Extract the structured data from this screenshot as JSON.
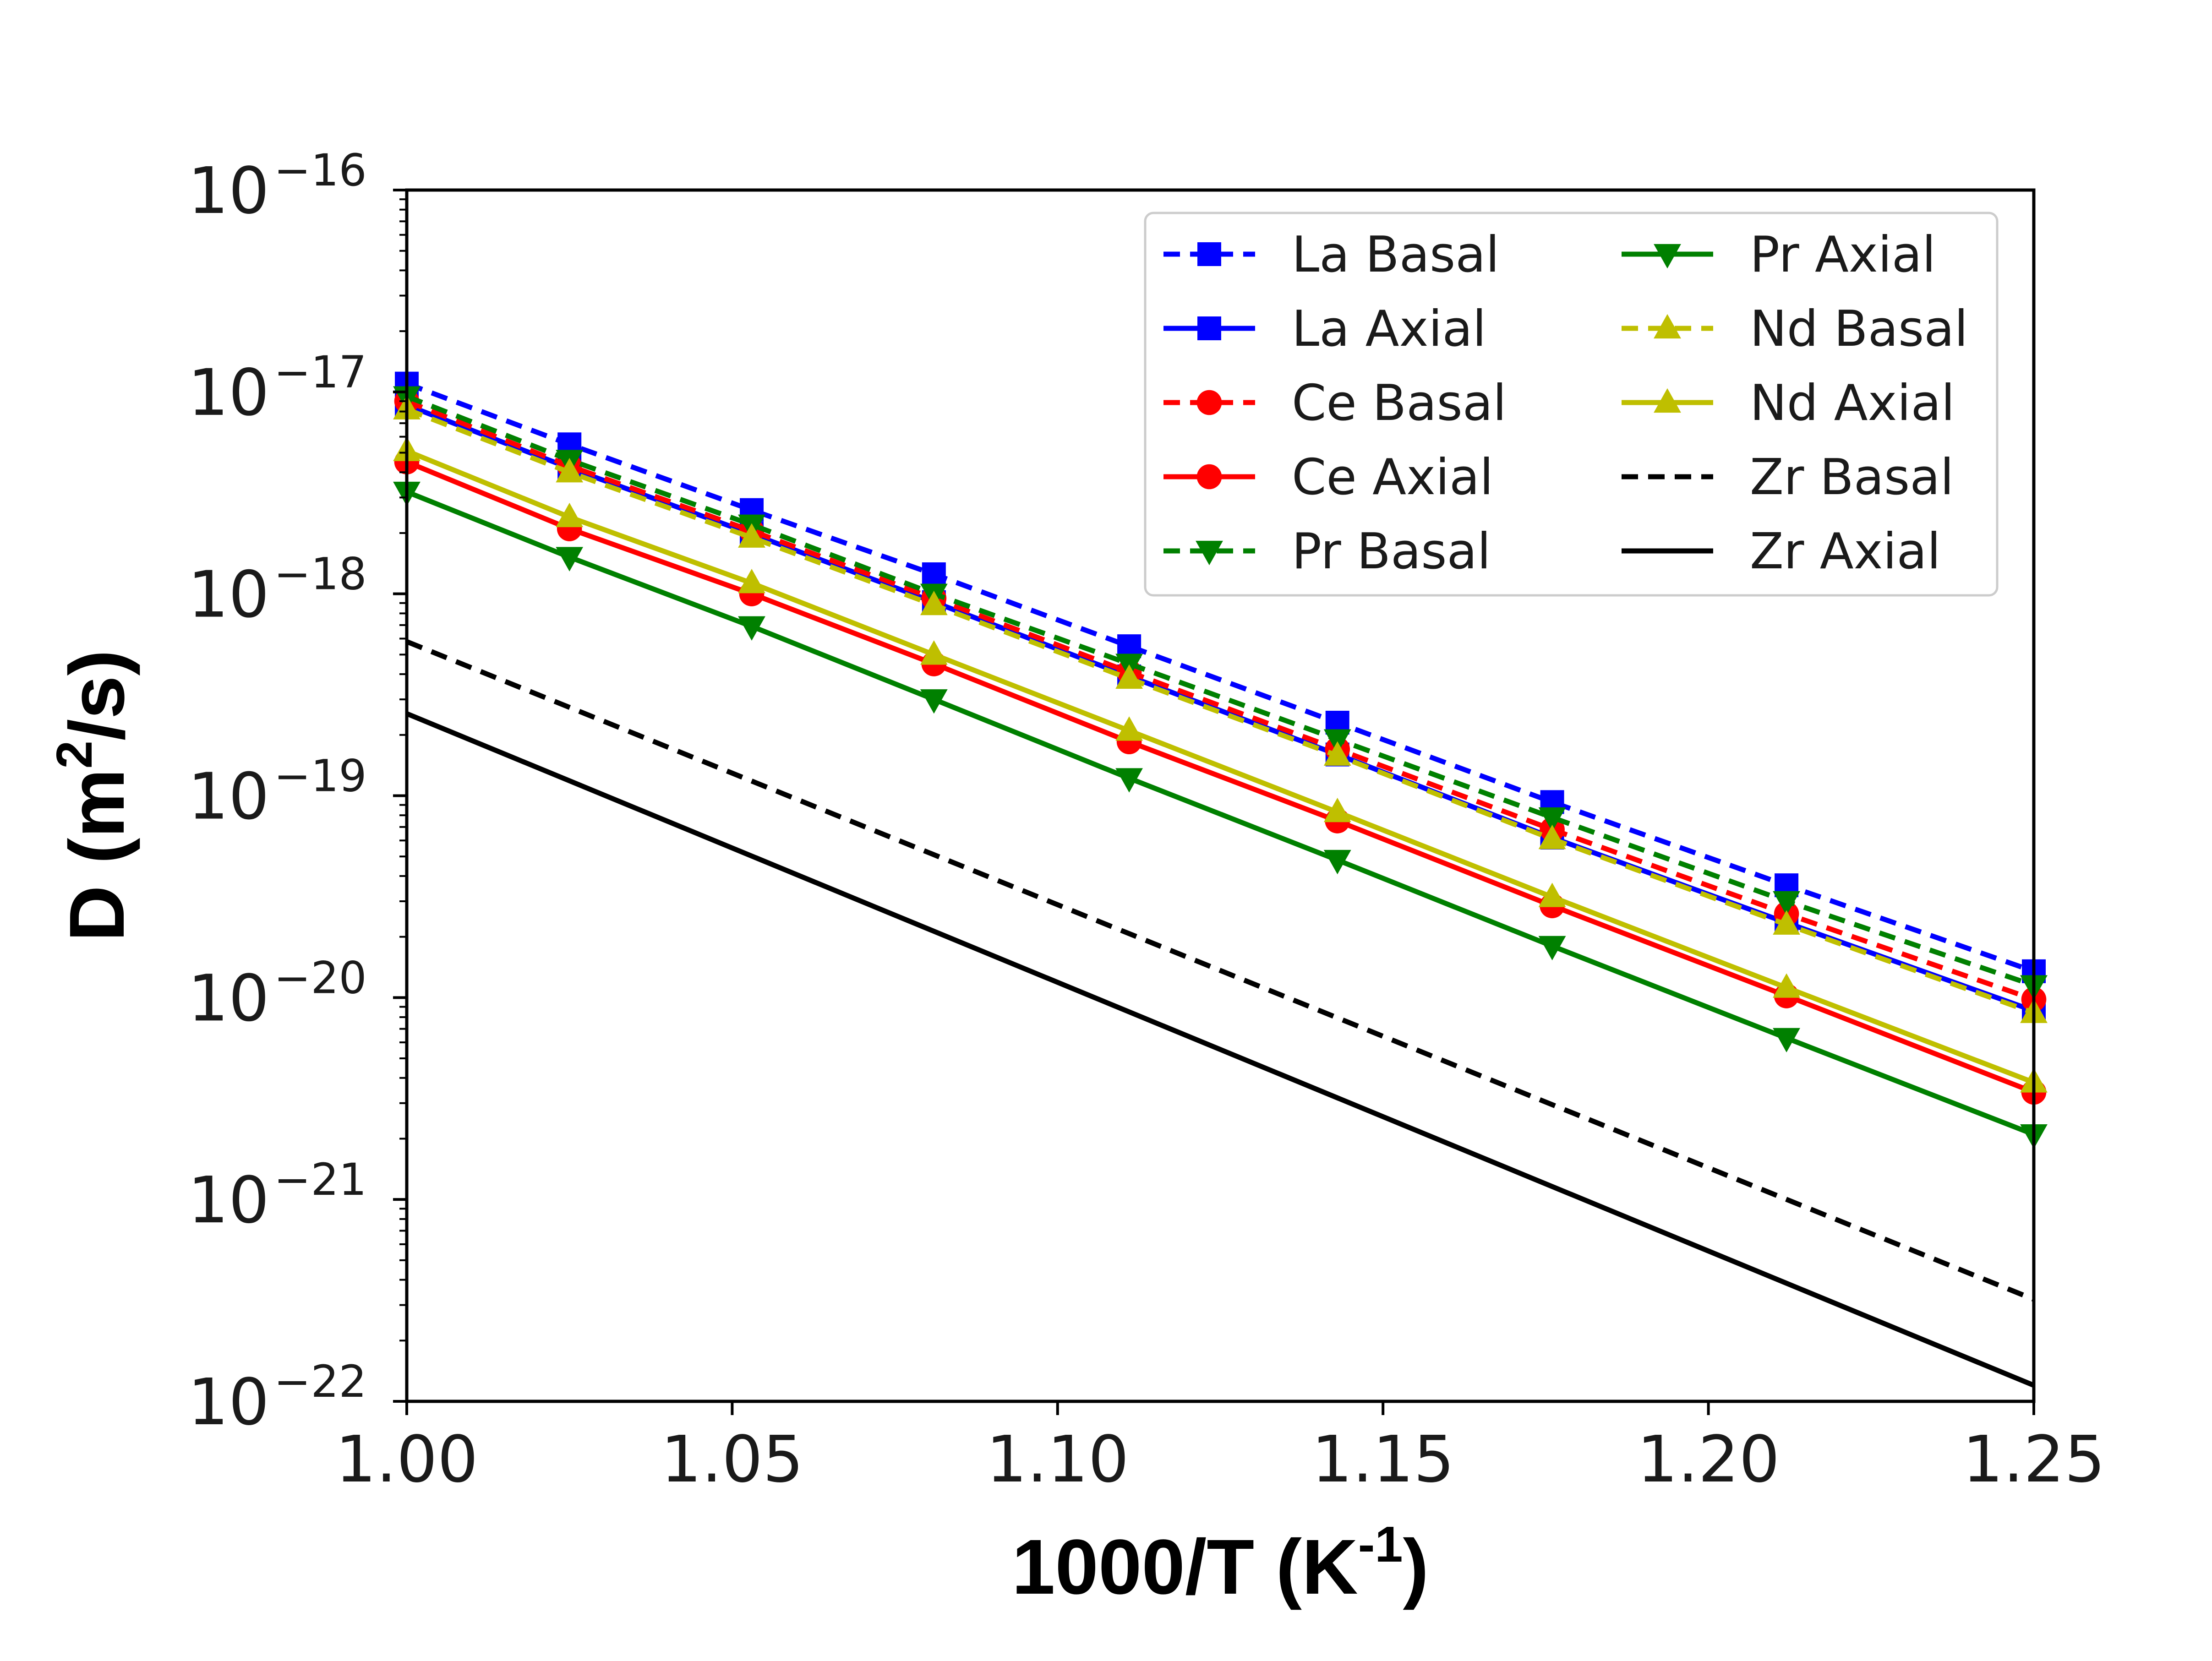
{
  "chart_data": {
    "type": "line",
    "xlabel": {
      "main": "1000/T (K",
      "sup": "-1",
      "close": ")"
    },
    "ylabel": {
      "main": "D (m",
      "sup": "2",
      "close": "/s)"
    },
    "xlim": [
      1.0,
      1.25
    ],
    "ylim": [
      1e-22,
      1e-16
    ],
    "yscale": "log",
    "grid": false,
    "legend_position": "top-right",
    "legend_columns": 2,
    "x_ticks": [
      {
        "value": 1.0,
        "label": "1.00"
      },
      {
        "value": 1.05,
        "label": "1.05"
      },
      {
        "value": 1.1,
        "label": "1.10"
      },
      {
        "value": 1.15,
        "label": "1.15"
      },
      {
        "value": 1.2,
        "label": "1.20"
      },
      {
        "value": 1.25,
        "label": "1.25"
      }
    ],
    "y_ticks": [
      {
        "exp": -16,
        "base": "10",
        "sup": "−16"
      },
      {
        "exp": -17,
        "base": "10",
        "sup": "−17"
      },
      {
        "exp": -18,
        "base": "10",
        "sup": "−18"
      },
      {
        "exp": -19,
        "base": "10",
        "sup": "−19"
      },
      {
        "exp": -20,
        "base": "10",
        "sup": "−20"
      },
      {
        "exp": -21,
        "base": "10",
        "sup": "−21"
      },
      {
        "exp": -22,
        "base": "10",
        "sup": "−22"
      }
    ],
    "series": [
      {
        "name": "La Basal",
        "color": "#0000ff",
        "dash": "dashed",
        "marker": "square",
        "x": [
          1.0,
          1.025,
          1.053,
          1.081,
          1.111,
          1.143,
          1.176,
          1.212,
          1.25
        ],
        "y": [
          1.1e-17,
          5.5e-18,
          2.6e-18,
          1.25e-18,
          5.5e-19,
          2.3e-19,
          9.3e-20,
          3.6e-20,
          1.35e-20
        ]
      },
      {
        "name": "La Axial",
        "color": "#0000ff",
        "dash": "solid",
        "marker": "square",
        "x": [
          1.0,
          1.025,
          1.053,
          1.081,
          1.111,
          1.143,
          1.176,
          1.212,
          1.25
        ],
        "y": [
          8.6e-18,
          4.2e-18,
          1.98e-18,
          9.1e-19,
          3.9e-19,
          1.6e-19,
          6.2e-20,
          2.35e-20,
          8.6e-21
        ]
      },
      {
        "name": "Ce Basal",
        "color": "#ff0000",
        "dash": "dashed",
        "marker": "circle",
        "x": [
          1.0,
          1.025,
          1.053,
          1.081,
          1.111,
          1.143,
          1.176,
          1.212,
          1.25
        ],
        "y": [
          9e-18,
          4.3e-18,
          2.05e-18,
          9.5e-19,
          4.1e-19,
          1.7e-19,
          6.8e-20,
          2.6e-20,
          9.8e-21
        ]
      },
      {
        "name": "Ce Axial",
        "color": "#ff0000",
        "dash": "solid",
        "marker": "circle",
        "x": [
          1.0,
          1.025,
          1.053,
          1.081,
          1.111,
          1.143,
          1.176,
          1.212,
          1.25
        ],
        "y": [
          4.5e-18,
          2.1e-18,
          1e-18,
          4.5e-19,
          1.85e-19,
          7.5e-20,
          2.85e-20,
          1.02e-20,
          3.4e-21
        ]
      },
      {
        "name": "Pr Basal",
        "color": "#008000",
        "dash": "dashed",
        "marker": "triangle-down",
        "x": [
          1.0,
          1.025,
          1.053,
          1.081,
          1.111,
          1.143,
          1.176,
          1.212,
          1.25
        ],
        "y": [
          9.5e-18,
          4.6e-18,
          2.2e-18,
          1e-18,
          4.5e-19,
          1.9e-19,
          7.8e-20,
          3e-20,
          1.15e-20
        ]
      },
      {
        "name": "Pr Axial",
        "color": "#008000",
        "dash": "solid",
        "marker": "triangle-down",
        "x": [
          1.0,
          1.025,
          1.053,
          1.081,
          1.111,
          1.143,
          1.176,
          1.212,
          1.25
        ],
        "y": [
          3.2e-18,
          1.52e-18,
          6.9e-19,
          3e-19,
          1.22e-19,
          4.8e-20,
          1.8e-20,
          6.3e-21,
          2.1e-21
        ]
      },
      {
        "name": "Nd Basal",
        "color": "#bfbf00",
        "dash": "dashed",
        "marker": "triangle-up",
        "x": [
          1.0,
          1.025,
          1.053,
          1.081,
          1.111,
          1.143,
          1.176,
          1.212,
          1.25
        ],
        "y": [
          8.2e-18,
          4e-18,
          1.9e-18,
          8.8e-19,
          3.8e-19,
          1.58e-19,
          6.1e-20,
          2.3e-20,
          8.4e-21
        ]
      },
      {
        "name": "Nd Axial",
        "color": "#bfbf00",
        "dash": "solid",
        "marker": "triangle-up",
        "x": [
          1.0,
          1.025,
          1.053,
          1.081,
          1.111,
          1.143,
          1.176,
          1.212,
          1.25
        ],
        "y": [
          5.1e-18,
          2.4e-18,
          1.13e-18,
          5e-19,
          2.1e-19,
          8.3e-20,
          3.15e-20,
          1.12e-20,
          3.8e-21
        ]
      },
      {
        "name": "Zr Basal",
        "color": "#000000",
        "dash": "dashed",
        "marker": "none",
        "x": [
          1.0,
          1.25
        ],
        "y": [
          5.8e-19,
          3.2e-22
        ]
      },
      {
        "name": "Zr Axial",
        "color": "#000000",
        "dash": "solid",
        "marker": "none",
        "x": [
          1.0,
          1.25
        ],
        "y": [
          2.55e-19,
          1.2e-22
        ]
      }
    ]
  }
}
